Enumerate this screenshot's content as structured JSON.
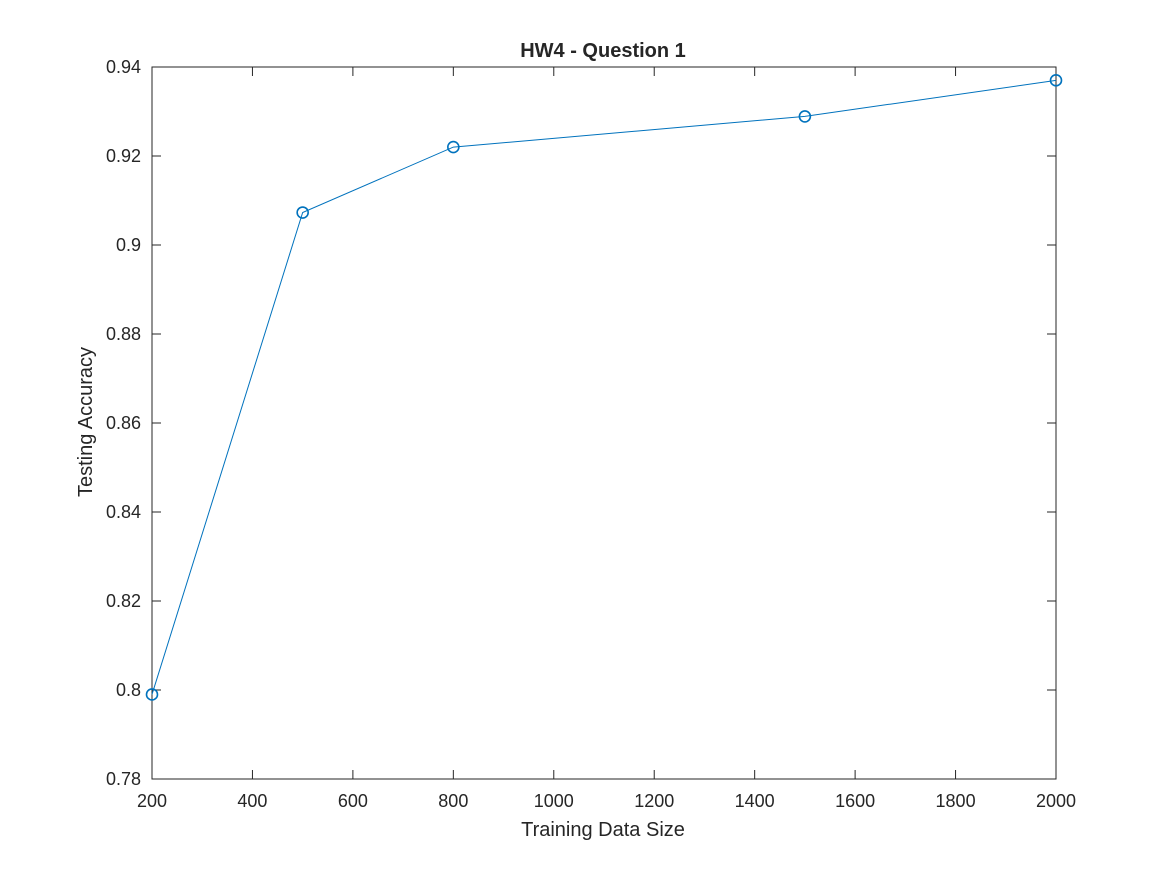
{
  "chart_data": {
    "type": "line",
    "title": "HW4 - Question 1",
    "xlabel": "Training Data Size",
    "ylabel": "Testing Accuracy",
    "xlim": [
      200,
      2000
    ],
    "ylim": [
      0.78,
      0.94
    ],
    "xticks": [
      200,
      400,
      600,
      800,
      1000,
      1200,
      1400,
      1600,
      1800,
      2000
    ],
    "xtick_labels": [
      "200",
      "400",
      "600",
      "800",
      "1000",
      "1200",
      "1400",
      "1600",
      "1800",
      "2000"
    ],
    "yticks": [
      0.78,
      0.8,
      0.82,
      0.84,
      0.86,
      0.88,
      0.9,
      0.92,
      0.94
    ],
    "ytick_labels": [
      "0.78",
      "0.8",
      "0.82",
      "0.84",
      "0.86",
      "0.88",
      "0.9",
      "0.92",
      "0.94"
    ],
    "grid": false,
    "series": [
      {
        "marker": "circle",
        "color": "#0072BD",
        "x": [
          200,
          500,
          800,
          1500,
          2000
        ],
        "y": [
          0.799,
          0.9073,
          0.922,
          0.9289,
          0.937
        ]
      }
    ]
  }
}
